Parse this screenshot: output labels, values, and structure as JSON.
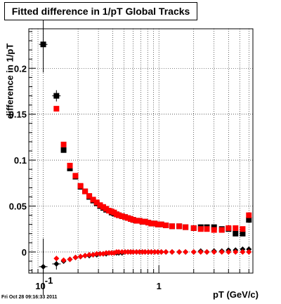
{
  "title": "Fitted difference in 1/pT  Global Tracks",
  "footer": "Fri Oct 28 09:16:33 2011",
  "chart_data": {
    "type": "scatter",
    "title": "Fitted difference in 1/pT  Global Tracks",
    "xlabel": "pT (GeV/c)",
    "ylabel": "difference in 1/pT",
    "xscale": "log",
    "xlim": [
      0.075,
      6.5
    ],
    "ylim": [
      -0.023,
      0.243
    ],
    "grid": true,
    "xticks": [
      {
        "value": 0.1,
        "label": "10",
        "sup": "-1"
      },
      {
        "value": 1,
        "label": "1",
        "sup": ""
      }
    ],
    "yticks": [
      0,
      0.05,
      0.1,
      0.15,
      0.2
    ],
    "ytick_labels": [
      "0",
      "0.05",
      "0.1",
      "0.15",
      "0.2"
    ],
    "series": [
      {
        "color": "#000000",
        "x": [
          0.1,
          0.13,
          0.15,
          0.17,
          0.19,
          0.21,
          0.23,
          0.25,
          0.27,
          0.29,
          0.31,
          0.33,
          0.35,
          0.37,
          0.39,
          0.41,
          0.43,
          0.45,
          0.48,
          0.51,
          0.54,
          0.57,
          0.6,
          0.64,
          0.68,
          0.72,
          0.76,
          0.81,
          0.86,
          0.92,
          0.98,
          1.05,
          1.15,
          1.3,
          1.5,
          1.7,
          2.0,
          2.3,
          2.6,
          3.0,
          3.5,
          4.0,
          4.6,
          5.3,
          6.0
        ],
        "upper": [
          0.226,
          0.17,
          0.111,
          0.091,
          0.082,
          0.071,
          0.066,
          0.06,
          0.056,
          0.053,
          0.05,
          0.048,
          0.046,
          0.045,
          0.043,
          0.042,
          0.041,
          0.04,
          0.039,
          0.038,
          0.037,
          0.036,
          0.035,
          0.034,
          0.034,
          0.033,
          0.033,
          0.032,
          0.031,
          0.031,
          0.03,
          0.03,
          0.029,
          0.028,
          0.028,
          0.027,
          0.026,
          0.027,
          0.027,
          0.027,
          0.025,
          0.025,
          0.02,
          0.02,
          0.035
        ],
        "lower": [
          -0.016,
          -0.013,
          -0.01,
          -0.008,
          -0.006,
          -0.005,
          -0.004,
          -0.004,
          -0.003,
          -0.003,
          -0.002,
          -0.002,
          -0.002,
          -0.001,
          -0.001,
          -0.001,
          -0.001,
          -0.001,
          -0.001,
          0.0,
          0.0,
          0.0,
          0.0,
          0.0,
          0.0,
          0.0,
          0.0,
          0.0,
          0.0,
          0.0,
          0.0,
          0.0,
          0.0,
          0.0,
          0.0,
          0.0,
          0.0,
          0.001,
          0.0,
          0.001,
          0.001,
          0.002,
          0.002,
          0.003,
          0.003
        ]
      },
      {
        "color": "#ff0000",
        "x": [
          0.13,
          0.15,
          0.17,
          0.19,
          0.21,
          0.23,
          0.25,
          0.27,
          0.29,
          0.31,
          0.33,
          0.35,
          0.37,
          0.39,
          0.41,
          0.43,
          0.45,
          0.48,
          0.51,
          0.54,
          0.57,
          0.6,
          0.64,
          0.68,
          0.72,
          0.76,
          0.81,
          0.86,
          0.92,
          0.98,
          1.05,
          1.15,
          1.3,
          1.5,
          1.7,
          2.0,
          2.3,
          2.6,
          3.0,
          3.5,
          4.0,
          4.6,
          5.3,
          6.0
        ],
        "upper": [
          0.156,
          0.117,
          0.094,
          0.083,
          0.072,
          0.066,
          0.061,
          0.057,
          0.054,
          0.051,
          0.049,
          0.047,
          0.045,
          0.044,
          0.043,
          0.041,
          0.04,
          0.039,
          0.038,
          0.037,
          0.036,
          0.035,
          0.034,
          0.034,
          0.033,
          0.033,
          0.032,
          0.031,
          0.031,
          0.03,
          0.03,
          0.029,
          0.028,
          0.028,
          0.027,
          0.026,
          0.025,
          0.025,
          0.024,
          0.024,
          0.026,
          0.026,
          0.025,
          0.04
        ],
        "lower": [
          -0.007,
          -0.009,
          -0.008,
          -0.006,
          -0.005,
          -0.004,
          -0.003,
          -0.003,
          -0.002,
          -0.002,
          -0.002,
          -0.001,
          -0.001,
          -0.001,
          -0.001,
          0.0,
          0.0,
          0.0,
          0.0,
          0.0,
          0.0,
          0.0,
          0.0,
          0.0,
          0.0,
          0.0,
          0.0,
          0.0,
          0.0,
          0.0,
          0.0,
          0.0,
          0.0,
          0.0,
          0.0,
          0.0,
          0.0,
          0.0,
          0.0,
          0.0,
          0.0,
          0.0,
          0.0,
          0.0
        ]
      }
    ]
  }
}
